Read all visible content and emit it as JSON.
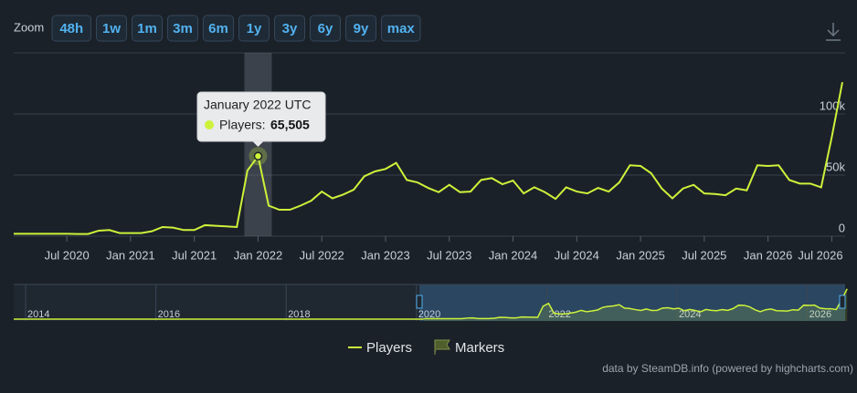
{
  "zoom": {
    "label": "Zoom",
    "buttons": [
      "48h",
      "1w",
      "1m",
      "3m",
      "6m",
      "1y",
      "3y",
      "6y",
      "9y",
      "max"
    ]
  },
  "chart_data": {
    "type": "line",
    "x": [
      "2020-02",
      "2020-03",
      "2020-04",
      "2020-05",
      "2020-06",
      "2020-07",
      "2020-08",
      "2020-09",
      "2020-10",
      "2020-11",
      "2020-12",
      "2021-01",
      "2021-02",
      "2021-03",
      "2021-04",
      "2021-05",
      "2021-06",
      "2021-07",
      "2021-08",
      "2021-09",
      "2021-10",
      "2021-11",
      "2021-12",
      "2022-01",
      "2022-02",
      "2022-03",
      "2022-04",
      "2022-05",
      "2022-06",
      "2022-07",
      "2022-08",
      "2022-09",
      "2022-10",
      "2022-11",
      "2022-12",
      "2023-01",
      "2023-02",
      "2023-03",
      "2023-04",
      "2023-05",
      "2023-06",
      "2023-07",
      "2023-08",
      "2023-09",
      "2023-10",
      "2023-11",
      "2023-12",
      "2024-01",
      "2024-02",
      "2024-03",
      "2024-04",
      "2024-05",
      "2024-06",
      "2024-07",
      "2024-08",
      "2024-09",
      "2024-10",
      "2024-11",
      "2024-12",
      "2025-01",
      "2025-02",
      "2025-03",
      "2025-04",
      "2025-05",
      "2025-06",
      "2025-07",
      "2025-08",
      "2025-09",
      "2025-10",
      "2025-11",
      "2025-12",
      "2026-01",
      "2026-02",
      "2026-03",
      "2026-04",
      "2026-05",
      "2026-06",
      "2026-07",
      "2026-08"
    ],
    "series": [
      {
        "name": "Players",
        "color": "#cdf23a",
        "values": [
          2000,
          2000,
          2000,
          2000,
          2000,
          2000,
          1800,
          1800,
          4500,
          5000,
          2500,
          2500,
          2500,
          4000,
          7500,
          7000,
          5000,
          5000,
          9000,
          8500,
          8000,
          7500,
          53700,
          65505,
          25000,
          21600,
          21600,
          25000,
          29000,
          36500,
          31000,
          34000,
          38000,
          49000,
          53000,
          55000,
          60000,
          46000,
          44000,
          39500,
          36000,
          42000,
          36000,
          36500,
          46000,
          47500,
          42500,
          45500,
          35000,
          40000,
          36000,
          30500,
          40000,
          36500,
          35000,
          39500,
          36500,
          44000,
          58000,
          57500,
          51500,
          39000,
          31000,
          39000,
          42000,
          35000,
          34500,
          33500,
          39000,
          37500,
          58000,
          57500,
          58000,
          46000,
          43000,
          43000,
          40000,
          81000,
          126000
        ]
      }
    ],
    "xlim": [
      "2020-02",
      "2026-08"
    ],
    "xticks": [
      {
        "value": "2020-07",
        "label": "Jul 2020"
      },
      {
        "value": "2021-01",
        "label": "Jan 2021"
      },
      {
        "value": "2021-07",
        "label": "Jul 2021"
      },
      {
        "value": "2022-01",
        "label": "Jan 2022"
      },
      {
        "value": "2022-07",
        "label": "Jul 2022"
      },
      {
        "value": "2023-01",
        "label": "Jan 2023"
      },
      {
        "value": "2023-07",
        "label": "Jul 2023"
      },
      {
        "value": "2024-01",
        "label": "Jan 2024"
      },
      {
        "value": "2024-07",
        "label": "Jul 2024"
      },
      {
        "value": "2025-01",
        "label": "Jan 2025"
      },
      {
        "value": "2025-07",
        "label": "Jul 2025"
      },
      {
        "value": "2026-01",
        "label": "Jan 2026"
      },
      {
        "value": "2026-07",
        "label": "Jul 2026"
      }
    ],
    "ylim": [
      0,
      150000
    ],
    "yticks": [
      0,
      {
        "value": 50000,
        "label": "50k"
      },
      {
        "value": 100000,
        "label": "100k"
      }
    ],
    "grid": true,
    "tooltip": {
      "x": "2022-01",
      "title": "January 2022 UTC",
      "label": "Players:",
      "value_label": "65,505"
    },
    "navigator_ticks": [
      "2014",
      "2016",
      "2018",
      "2020",
      "2022",
      "2024",
      "2026"
    ],
    "markers_label": "Markers"
  },
  "credit": "data by SteamDB.info (powered by highcharts.com)"
}
